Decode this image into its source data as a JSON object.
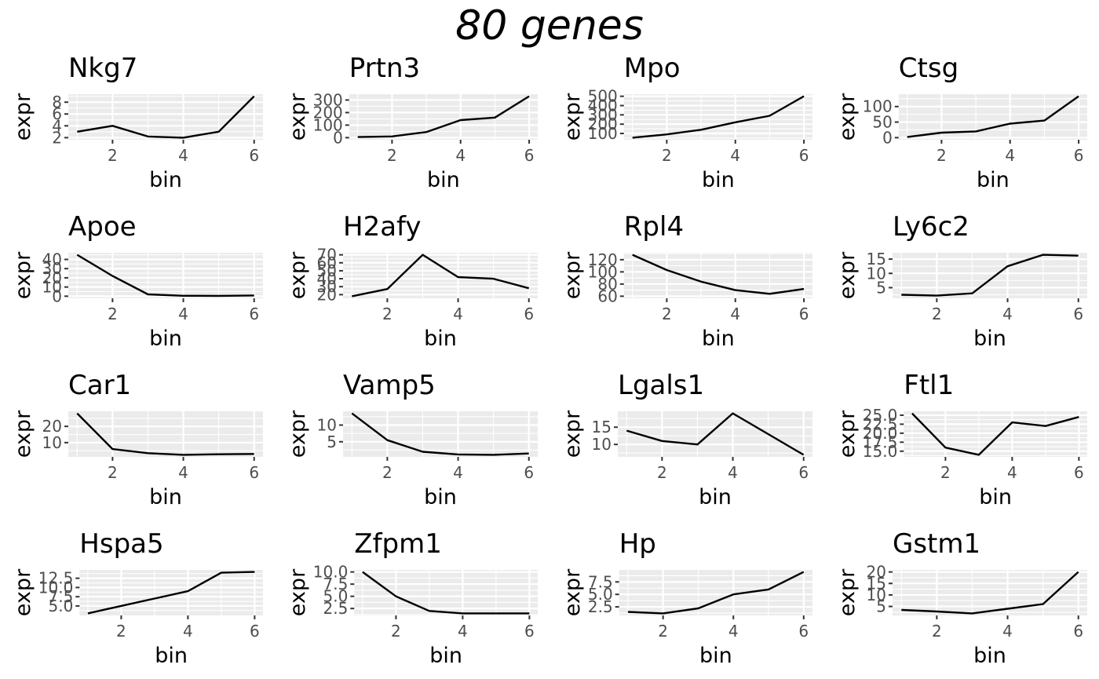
{
  "figure": {
    "title": "80 genes"
  },
  "chart_data": [
    {
      "type": "line",
      "title": "Nkg7",
      "xlabel": "bin",
      "ylabel": "expr",
      "x": [
        1,
        2,
        3,
        4,
        5,
        6
      ],
      "values": [
        3.0,
        4.0,
        2.2,
        2.0,
        3.0,
        9.0
      ],
      "xticks": [
        2,
        4,
        6
      ],
      "yticks": [
        2,
        4,
        6,
        8
      ],
      "xlim": [
        1,
        6
      ],
      "ylim": [
        2,
        9
      ],
      "grid": true
    },
    {
      "type": "line",
      "title": "Prtn3",
      "xlabel": "bin",
      "ylabel": "expr",
      "x": [
        1,
        2,
        3,
        4,
        5,
        6
      ],
      "values": [
        5,
        10,
        45,
        140,
        160,
        330
      ],
      "xticks": [
        2,
        4,
        6
      ],
      "yticks": [
        0,
        100,
        200,
        300
      ],
      "xlim": [
        1,
        6
      ],
      "ylim": [
        0,
        330
      ],
      "grid": true
    },
    {
      "type": "line",
      "title": "Mpo",
      "xlabel": "bin",
      "ylabel": "expr",
      "x": [
        1,
        2,
        3,
        4,
        5,
        6
      ],
      "values": [
        55,
        90,
        140,
        220,
        290,
        500
      ],
      "xticks": [
        2,
        4,
        6
      ],
      "yticks": [
        100,
        200,
        300,
        400,
        500
      ],
      "xlim": [
        1,
        6
      ],
      "ylim": [
        55,
        500
      ],
      "grid": true
    },
    {
      "type": "line",
      "title": "Ctsg",
      "xlabel": "bin",
      "ylabel": "expr",
      "x": [
        1,
        2,
        3,
        4,
        5,
        6
      ],
      "values": [
        2,
        16,
        20,
        45,
        55,
        133
      ],
      "xticks": [
        2,
        4,
        6
      ],
      "yticks": [
        0,
        50,
        100
      ],
      "xlim": [
        1,
        6
      ],
      "ylim": [
        0,
        133
      ],
      "grid": true
    },
    {
      "type": "line",
      "title": "Apoe",
      "xlabel": "bin",
      "ylabel": "expr",
      "x": [
        1,
        2,
        3,
        4,
        5,
        6
      ],
      "values": [
        45,
        22,
        2,
        0.5,
        0.4,
        0.8
      ],
      "xticks": [
        2,
        4,
        6
      ],
      "yticks": [
        0,
        10,
        20,
        30,
        40
      ],
      "xlim": [
        1,
        6
      ],
      "ylim": [
        0,
        45
      ],
      "grid": true
    },
    {
      "type": "line",
      "title": "H2afy",
      "xlabel": "bin",
      "ylabel": "expr",
      "x": [
        1,
        2,
        3,
        4,
        5,
        6
      ],
      "values": [
        18,
        27,
        70,
        42,
        40,
        28
      ],
      "xticks": [
        2,
        4,
        6
      ],
      "yticks": [
        20,
        30,
        40,
        50,
        60,
        70
      ],
      "xlim": [
        1,
        6
      ],
      "ylim": [
        18,
        70
      ],
      "grid": true
    },
    {
      "type": "line",
      "title": "Rpl4",
      "xlabel": "bin",
      "ylabel": "expr",
      "x": [
        1,
        2,
        3,
        4,
        5,
        6
      ],
      "values": [
        128,
        103,
        84,
        70,
        64,
        72
      ],
      "xticks": [
        2,
        4,
        6
      ],
      "yticks": [
        60,
        80,
        100,
        120
      ],
      "xlim": [
        1,
        6
      ],
      "ylim": [
        60,
        128
      ],
      "grid": true
    },
    {
      "type": "line",
      "title": "Ly6c2",
      "xlabel": "bin",
      "ylabel": "expr",
      "x": [
        1,
        2,
        3,
        4,
        5,
        6
      ],
      "values": [
        2.5,
        2.2,
        3.0,
        12.5,
        16.5,
        16.2
      ],
      "xticks": [
        2,
        4,
        6
      ],
      "yticks": [
        5,
        10,
        15
      ],
      "xlim": [
        1,
        6
      ],
      "ylim": [
        2,
        16.5
      ],
      "grid": true
    },
    {
      "type": "line",
      "title": "Car1",
      "xlabel": "bin",
      "ylabel": "expr",
      "x": [
        1,
        2,
        3,
        4,
        5,
        6
      ],
      "values": [
        28,
        6,
        3.5,
        2.5,
        2.8,
        3.0
      ],
      "xticks": [
        2,
        4,
        6
      ],
      "yticks": [
        10,
        20
      ],
      "xlim": [
        1,
        6
      ],
      "ylim": [
        2.5,
        28
      ],
      "grid": true
    },
    {
      "type": "line",
      "title": "Vamp5",
      "xlabel": "bin",
      "ylabel": "expr",
      "x": [
        1,
        2,
        3,
        4,
        5,
        6
      ],
      "values": [
        13.5,
        5.5,
        2.0,
        1.2,
        1.1,
        1.5
      ],
      "xticks": [
        2,
        4,
        6
      ],
      "yticks": [
        5,
        10
      ],
      "xlim": [
        1,
        6
      ],
      "ylim": [
        1.1,
        13.5
      ],
      "grid": true
    },
    {
      "type": "line",
      "title": "Lgals1",
      "xlabel": "bin",
      "ylabel": "expr",
      "x": [
        1,
        2,
        3,
        4,
        5,
        6
      ],
      "values": [
        14,
        11,
        10,
        19,
        13,
        7
      ],
      "xticks": [
        2,
        4,
        6
      ],
      "yticks": [
        10,
        15
      ],
      "xlim": [
        1,
        6
      ],
      "ylim": [
        7,
        19
      ],
      "grid": true
    },
    {
      "type": "line",
      "title": "Ftl1",
      "xlabel": "bin",
      "ylabel": "expr",
      "x": [
        1,
        2,
        3,
        4,
        5,
        6
      ],
      "values": [
        25.5,
        16,
        14,
        23,
        22,
        24.5
      ],
      "xticks": [
        2,
        4,
        6
      ],
      "yticks": [
        15.0,
        17.5,
        20.0,
        22.5,
        25.0
      ],
      "yticklabels": [
        "15.0",
        "17.5",
        "20.0",
        "22.5",
        "25.0"
      ],
      "xlim": [
        1,
        6
      ],
      "ylim": [
        14,
        25.5
      ],
      "grid": true
    },
    {
      "type": "line",
      "title": "Hspa5",
      "xlabel": "bin",
      "ylabel": "expr",
      "x": [
        1,
        2,
        3,
        4,
        5,
        6
      ],
      "values": [
        3.0,
        5.0,
        7.0,
        9.0,
        14.0,
        14.2
      ],
      "xticks": [
        2,
        4,
        6
      ],
      "yticks": [
        5.0,
        7.5,
        10.0,
        12.5
      ],
      "yticklabels": [
        "5.0",
        "7.5",
        "10.0",
        "12.5"
      ],
      "xlim": [
        1,
        6
      ],
      "ylim": [
        3,
        14.2
      ],
      "grid": true
    },
    {
      "type": "line",
      "title": "Zfpm1",
      "xlabel": "bin",
      "ylabel": "expr",
      "x": [
        1,
        2,
        3,
        4,
        5,
        6
      ],
      "values": [
        10.0,
        5.0,
        2.0,
        1.5,
        1.5,
        1.5
      ],
      "xticks": [
        2,
        4,
        6
      ],
      "yticks": [
        2.5,
        5.0,
        7.5,
        10.0
      ],
      "yticklabels": [
        "2.5",
        "5.0",
        "7.5",
        "10.0"
      ],
      "xlim": [
        1,
        6
      ],
      "ylim": [
        1.5,
        10
      ],
      "grid": true
    },
    {
      "type": "line",
      "title": "Hp",
      "xlabel": "bin",
      "ylabel": "expr",
      "x": [
        1,
        2,
        3,
        4,
        5,
        6
      ],
      "values": [
        1.5,
        1.2,
        2.2,
        5.0,
        6.0,
        9.5
      ],
      "xticks": [
        2,
        4,
        6
      ],
      "yticks": [
        2.5,
        5.0,
        7.5
      ],
      "yticklabels": [
        "2.5",
        "5.0",
        "7.5"
      ],
      "xlim": [
        1,
        6
      ],
      "ylim": [
        1.2,
        9.5
      ],
      "grid": true
    },
    {
      "type": "line",
      "title": "Gstm1",
      "xlabel": "bin",
      "ylabel": "expr",
      "x": [
        1,
        2,
        3,
        4,
        5,
        6
      ],
      "values": [
        3.5,
        2.8,
        2.0,
        4.0,
        6.0,
        20.0
      ],
      "xticks": [
        2,
        4,
        6
      ],
      "yticks": [
        5,
        10,
        15,
        20
      ],
      "xlim": [
        1,
        6
      ],
      "ylim": [
        2,
        20
      ],
      "grid": true
    }
  ]
}
